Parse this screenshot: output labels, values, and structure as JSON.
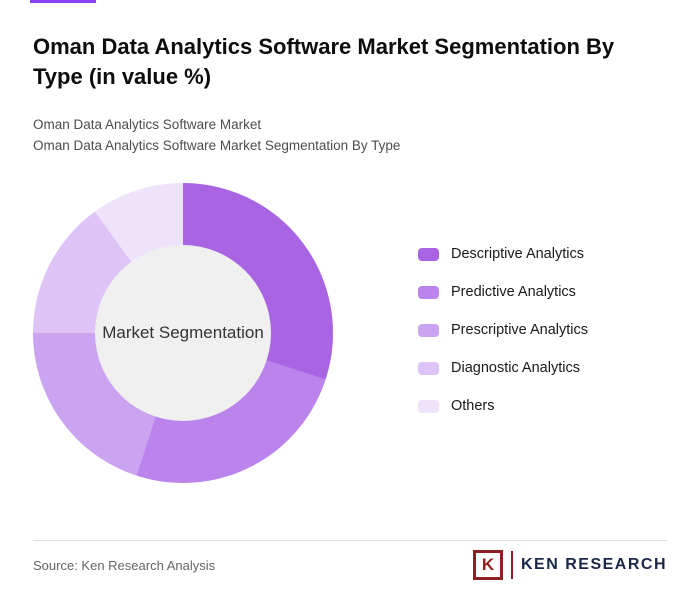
{
  "accent_color": "#8a3ff0",
  "header": {
    "title": "Oman Data Analytics Software Market Segmentation By Type (in value %)",
    "subtitle1": "Oman Data Analytics Software Market",
    "subtitle2": "Oman Data Analytics Software Market Segmentation By Type"
  },
  "chart_data": {
    "type": "pie",
    "donut": true,
    "title": "Oman Data Analytics Software Market Segmentation By Type (in value %)",
    "center_label": "Market Segmentation",
    "legend_position": "right",
    "start_angle_deg": 0,
    "direction": "clockwise",
    "categories": [
      "Descriptive Analytics",
      "Predictive Analytics",
      "Prescriptive Analytics",
      "Diagnostic Analytics",
      "Others"
    ],
    "values": [
      30,
      25,
      20,
      15,
      10
    ],
    "colors": [
      "#a964e3",
      "#ba84ec",
      "#cba4f1",
      "#ddc3f6",
      "#efe2fb"
    ],
    "center_circle_color": "#f0f0f0"
  },
  "footer": {
    "source": "Source: Ken Research Analysis",
    "logo_letter": "K",
    "logo_text": "KEN RESEARCH",
    "logo_color": "#8e2024"
  }
}
